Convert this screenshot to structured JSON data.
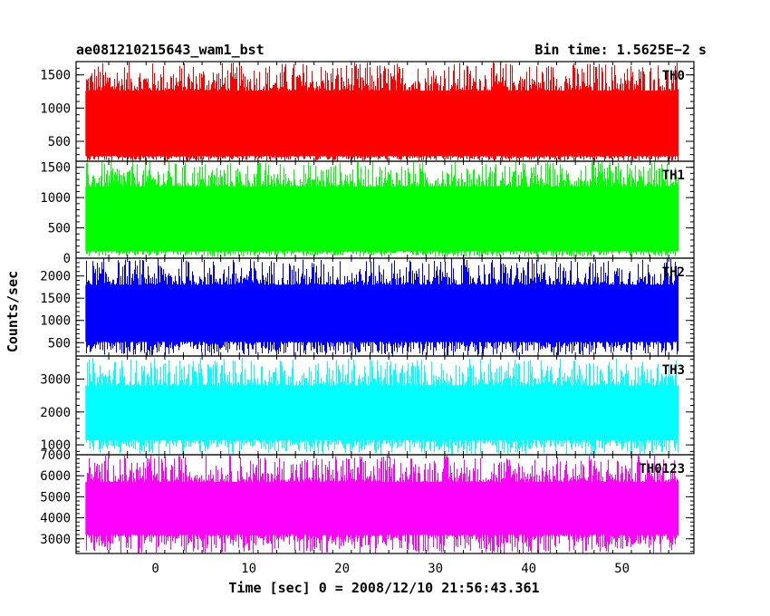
{
  "chart_data": {
    "type": "line",
    "title": "ae081210215643_wam1_bst",
    "subtitle": "Bin time: 1.5625E−2 s",
    "xlabel": "Time [sec] 0 = 2008/12/10 21:56:43.361",
    "ylabel": "Counts/sec",
    "xlim": [
      -8.5,
      57.7
    ],
    "x_range_of_data": [
      -7.5,
      56.0
    ],
    "x_ticks": [
      0,
      10,
      20,
      30,
      40,
      50
    ],
    "x_tick_labels": [
      "0",
      "10",
      "20",
      "30",
      "40",
      "50"
    ],
    "grid": false,
    "panels": [
      {
        "name": "TH0",
        "color": "#ff0000",
        "ylim": [
          200,
          1700
        ],
        "y_ticks": [
          500,
          1000,
          1500
        ],
        "y_tick_labels": [
          "500",
          "1000",
          "1500"
        ],
        "typical_min": 280,
        "typical_max": 1260,
        "peak_min": 200,
        "peak_max": 1700
      },
      {
        "name": "TH1",
        "color": "#00ff00",
        "ylim": [
          0,
          1600
        ],
        "y_ticks": [
          0,
          500,
          1000,
          1500
        ],
        "y_tick_labels": [
          "0",
          "500",
          "1000",
          "1500"
        ],
        "typical_min": 120,
        "typical_max": 1180,
        "peak_min": 20,
        "peak_max": 1600
      },
      {
        "name": "TH2",
        "color": "#0000ff",
        "ylim": [
          200,
          2400
        ],
        "y_ticks": [
          500,
          1000,
          1500,
          2000
        ],
        "y_tick_labels": [
          "500",
          "1000",
          "1500",
          "2000"
        ],
        "typical_min": 520,
        "typical_max": 1800,
        "peak_min": 200,
        "peak_max": 2400
      },
      {
        "name": "TH3",
        "color": "#00ffff",
        "ylim": [
          700,
          3700
        ],
        "y_ticks": [
          1000,
          2000,
          3000
        ],
        "y_tick_labels": [
          "1000",
          "2000",
          "3000"
        ],
        "typical_min": 1150,
        "typical_max": 2800,
        "peak_min": 700,
        "peak_max": 3650
      },
      {
        "name": "TH0123",
        "color": "#ff00ff",
        "ylim": [
          2300,
          7000
        ],
        "y_ticks": [
          3000,
          4000,
          5000,
          6000,
          7000
        ],
        "y_tick_labels": [
          "3000",
          "4000",
          "5000",
          "6000",
          "7000"
        ],
        "typical_min": 3200,
        "typical_max": 5700,
        "peak_min": 2300,
        "peak_max": 7000
      }
    ]
  }
}
